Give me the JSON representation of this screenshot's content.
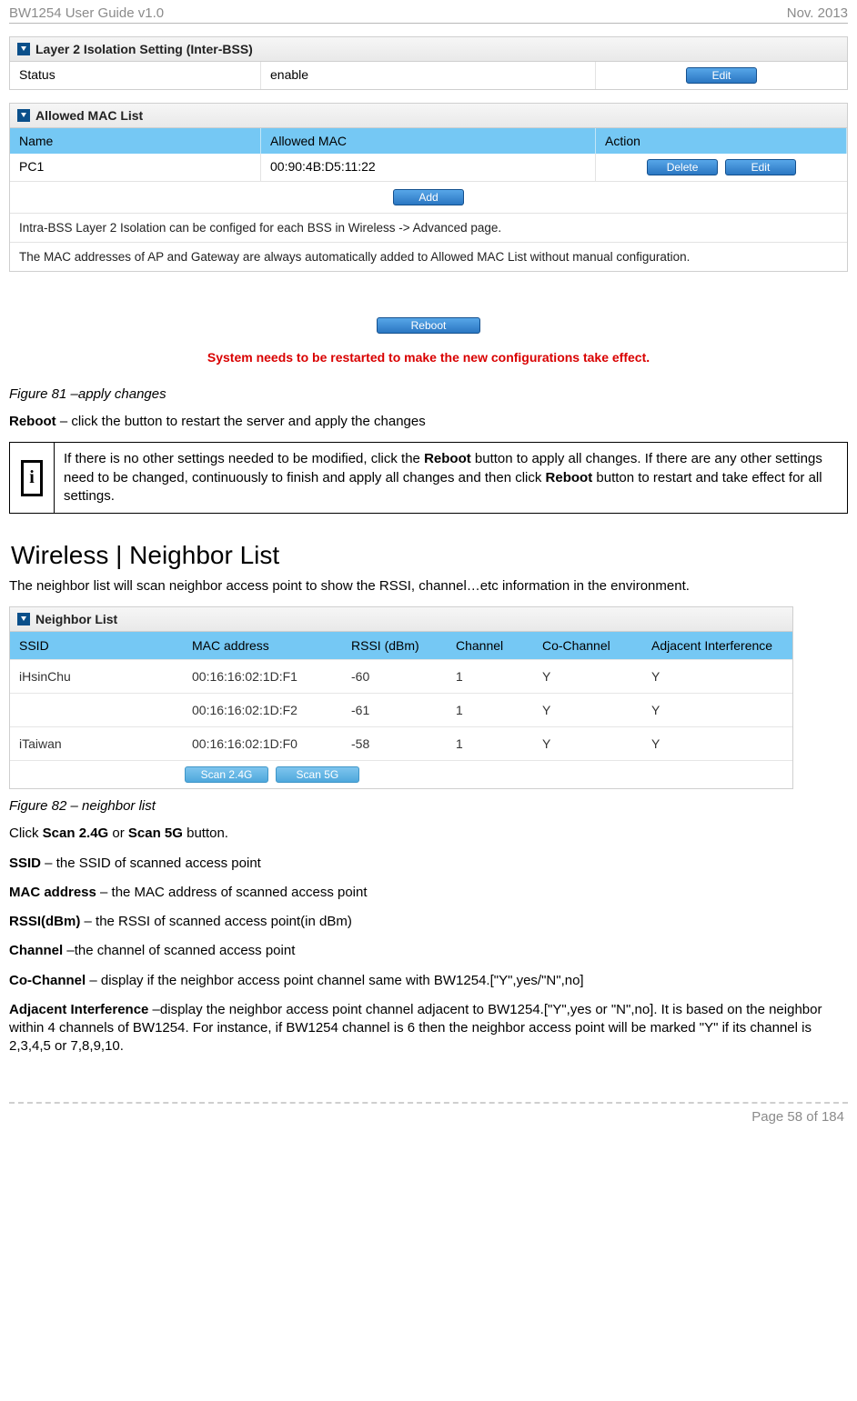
{
  "header": {
    "left": "BW1254 User Guide v1.0",
    "right": "Nov.  2013"
  },
  "panel1": {
    "title": "Layer 2 Isolation Setting (Inter-BSS)",
    "label_status": "Status",
    "value_status": "enable",
    "btn_edit": "Edit"
  },
  "panel2": {
    "title": "Allowed MAC List",
    "col_name": "Name",
    "col_mac": "Allowed MAC",
    "col_action": "Action",
    "row_name": "PC1",
    "row_mac": "00:90:4B:D5:11:22",
    "btn_delete": "Delete",
    "btn_edit": "Edit",
    "btn_add": "Add",
    "note1": "Intra-BSS Layer 2 Isolation can be configed for each BSS in Wireless -> Advanced page.",
    "note2": "The MAC addresses of AP and Gateway are always automatically added to Allowed MAC List without manual configuration."
  },
  "reboot": {
    "btn": "Reboot",
    "msg": "System needs to be restarted to make the new configurations take effect."
  },
  "fig81": "Figure 81 –apply changes",
  "reboot_line": {
    "b": "Reboot",
    "t": " – click the button to restart the server and apply the changes"
  },
  "callout": {
    "p1a": "If there is no other settings needed to be modified, click the ",
    "p1b": "Reboot",
    "p1c": " button to apply all changes. If there are any other settings need to be changed, continuously to finish and apply all changes and then click ",
    "p1d": "Reboot",
    "p1e": " button to restart and take effect for all settings."
  },
  "section_title": "Wireless | Neighbor List",
  "section_intro": "The neighbor list will scan neighbor access point to show the RSSI, channel…etc information in the environment.",
  "ntable": {
    "title": "Neighbor List",
    "col_ssid": "SSID",
    "col_mac": "MAC address",
    "col_rssi": "RSSI (dBm)",
    "col_chan": "Channel",
    "col_cochan": "Co-Channel",
    "col_adj": "Adjacent Interference",
    "rows": [
      {
        "ssid": "iHsinChu",
        "mac": "00:16:16:02:1D:F1",
        "rssi": "-60",
        "chan": "1",
        "co": "Y",
        "adj": "Y"
      },
      {
        "ssid": "",
        "mac": "00:16:16:02:1D:F2",
        "rssi": "-61",
        "chan": "1",
        "co": "Y",
        "adj": "Y"
      },
      {
        "ssid": "iTaiwan",
        "mac": "00:16:16:02:1D:F0",
        "rssi": "-58",
        "chan": "1",
        "co": "Y",
        "adj": "Y"
      }
    ],
    "btn_scan24": "Scan 2.4G",
    "btn_scan5": "Scan 5G"
  },
  "fig82": "Figure 82 – neighbor list",
  "line_click": {
    "a": "Click ",
    "b": "Scan 2.4G",
    "c": " or ",
    "d": "Scan 5G",
    "e": " button."
  },
  "line_ssid": {
    "b": "SSID",
    "t": " – the SSID of scanned access point"
  },
  "line_mac": {
    "b": "MAC address",
    "t": " – the MAC address of scanned access point"
  },
  "line_rssi": {
    "b": "RSSI(dBm)",
    "t": " – the RSSI of scanned access point(in dBm)"
  },
  "line_chan": {
    "b": "Channel",
    "t": " –the channel of scanned access point"
  },
  "line_cochan": {
    "b": "Co-Channel",
    "t": " – display if the neighbor access point channel same with BW1254.[\"Y\",yes/\"N\",no]"
  },
  "line_adj": {
    "b": "Adjacent Interference",
    "t": " –display the neighbor access point channel adjacent to BW1254.[\"Y\",yes or \"N\",no]. It is based on the neighbor within 4 channels of BW1254. For instance, if BW1254 channel is 6 then the neighbor access point will be marked \"Y\" if its channel is 2,3,4,5 or 7,8,9,10."
  },
  "footer": "Page 58 of 184"
}
